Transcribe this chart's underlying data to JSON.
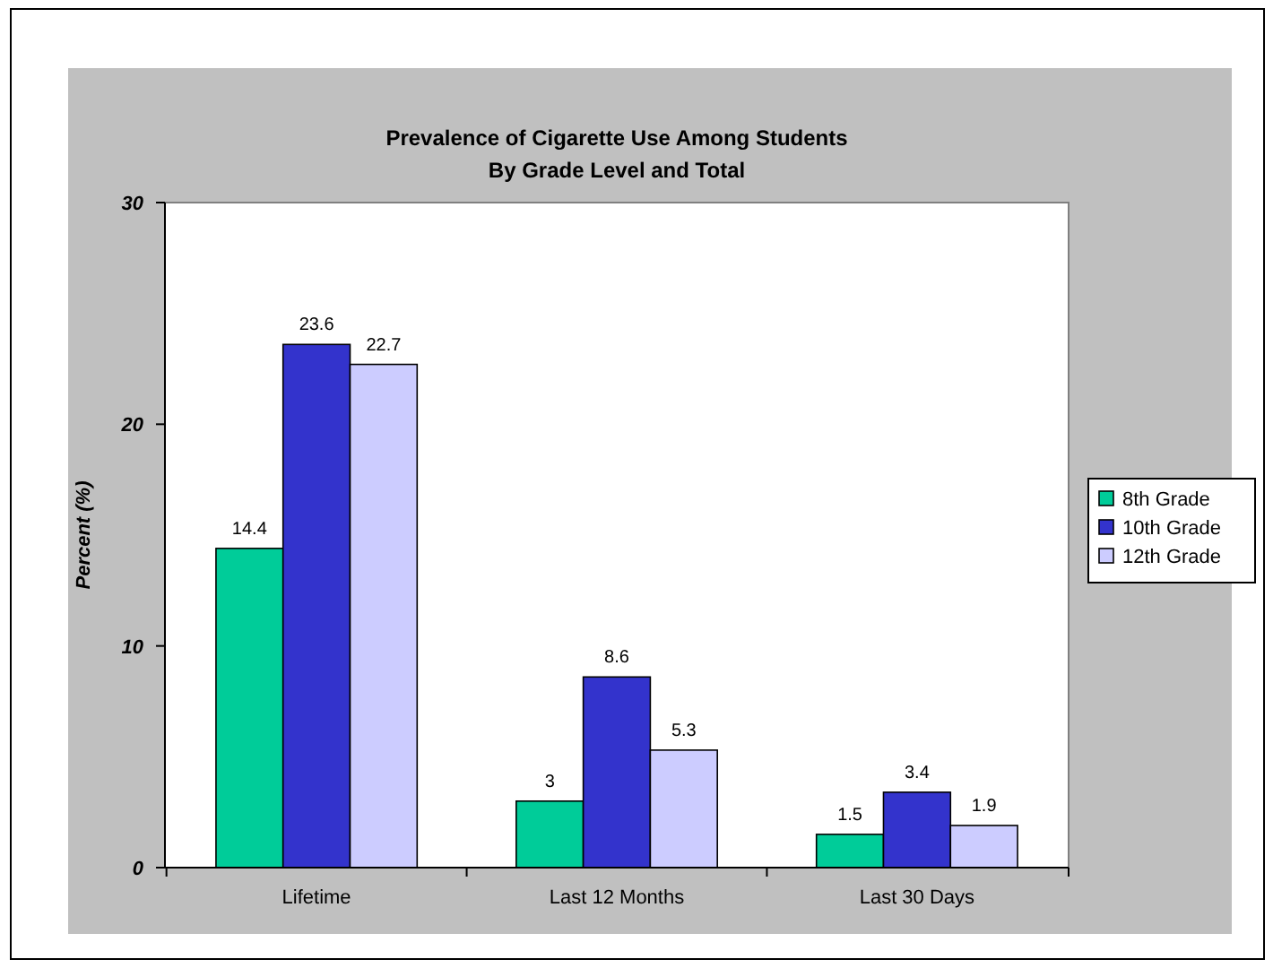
{
  "chart_data": {
    "type": "bar",
    "title": "Prevalence of Cigarette Use Among Students\nBy Grade Level and Total",
    "ylabel": "Percent (%)",
    "categories": [
      "Lifetime",
      "Last 12 Months",
      "Last 30 Days"
    ],
    "series": [
      {
        "name": "8th Grade",
        "color": "#00cc99",
        "values": [
          14.4,
          3,
          1.5
        ]
      },
      {
        "name": "10th Grade",
        "color": "#3333cc",
        "values": [
          23.6,
          8.6,
          3.4
        ]
      },
      {
        "name": "12th Grade",
        "color": "#ccccff",
        "values": [
          22.7,
          5.3,
          1.9
        ]
      }
    ],
    "ylim": [
      0,
      30
    ],
    "yticks": [
      0,
      10,
      20,
      30
    ],
    "data_labels": true,
    "legend": "right",
    "grid": false
  }
}
